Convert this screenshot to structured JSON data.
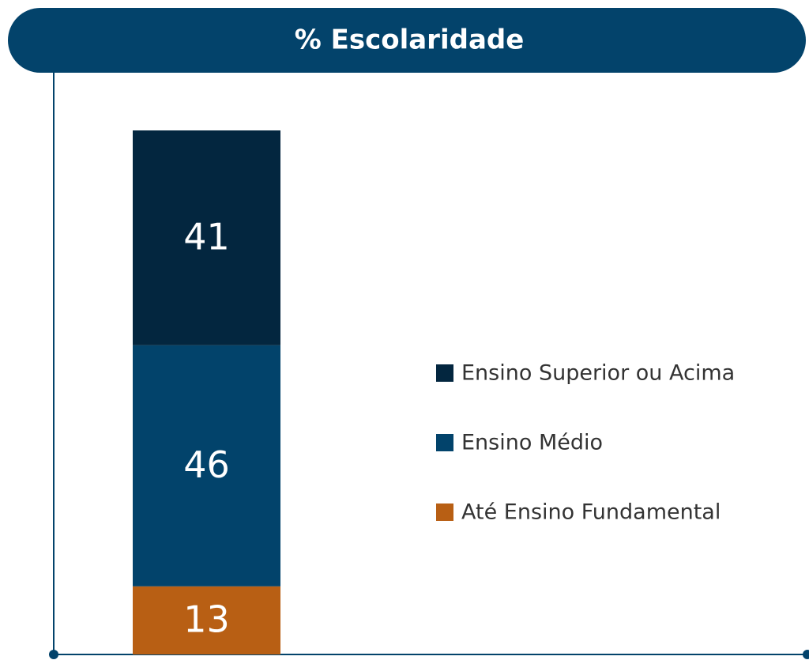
{
  "chart_data": {
    "type": "bar",
    "stacked": true,
    "title": "% Escolaridade",
    "categories": [
      null
    ],
    "series": [
      {
        "name": "Até Ensino Fundamental",
        "color": "#b85f14",
        "values": [
          13
        ]
      },
      {
        "name": "Ensino Médio",
        "color": "#02436b",
        "values": [
          46
        ]
      },
      {
        "name": "Ensino Superior ou Acima",
        "color": "#03263f",
        "values": [
          41
        ]
      }
    ],
    "legend": "right"
  }
}
